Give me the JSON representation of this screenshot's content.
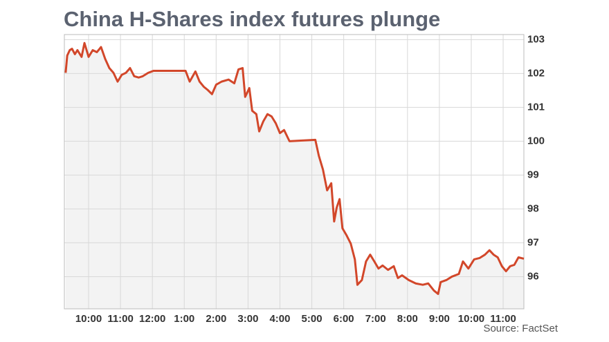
{
  "chart_data": {
    "type": "line",
    "title": "China H-Shares index futures plunge",
    "source": "Source: FactSet",
    "x": [
      9.28,
      9.33,
      9.41,
      9.48,
      9.57,
      9.65,
      9.78,
      9.87,
      10.0,
      10.13,
      10.26,
      10.39,
      10.52,
      10.65,
      10.78,
      10.91,
      11.04,
      11.17,
      11.3,
      11.43,
      11.57,
      11.7,
      11.87,
      12.04,
      13.04,
      13.17,
      13.35,
      13.48,
      13.61,
      13.74,
      13.87,
      14.0,
      14.17,
      14.39,
      14.57,
      14.7,
      14.83,
      14.91,
      15.04,
      15.13,
      15.26,
      15.35,
      15.48,
      15.61,
      15.74,
      15.87,
      16.0,
      16.13,
      16.3,
      17.11,
      17.22,
      17.35,
      17.48,
      17.61,
      17.7,
      17.78,
      17.87,
      17.96,
      18.09,
      18.22,
      18.35,
      18.43,
      18.57,
      18.7,
      18.83,
      18.96,
      19.09,
      19.22,
      19.39,
      19.57,
      19.7,
      19.83,
      20.04,
      20.26,
      20.48,
      20.65,
      20.83,
      20.96,
      21.04,
      21.22,
      21.39,
      21.61,
      21.74,
      21.91,
      22.09,
      22.26,
      22.43,
      22.57,
      22.7,
      22.83,
      22.96,
      23.09,
      23.22,
      23.35,
      23.48,
      23.65
    ],
    "series": [
      {
        "name": "H-Shares index futures",
        "color": "#d2472a",
        "values": [
          102.02,
          102.53,
          102.69,
          102.73,
          102.57,
          102.69,
          102.49,
          102.9,
          102.49,
          102.69,
          102.63,
          102.78,
          102.43,
          102.16,
          102.02,
          101.76,
          101.96,
          102.02,
          102.16,
          101.92,
          101.88,
          101.92,
          102.02,
          102.08,
          102.08,
          101.76,
          102.06,
          101.76,
          101.61,
          101.51,
          101.39,
          101.67,
          101.76,
          101.82,
          101.71,
          102.12,
          102.16,
          101.31,
          101.57,
          100.9,
          100.8,
          100.29,
          100.59,
          100.8,
          100.73,
          100.53,
          100.24,
          100.33,
          100.0,
          100.04,
          99.57,
          99.16,
          98.55,
          98.76,
          97.63,
          98.04,
          98.29,
          97.43,
          97.22,
          96.98,
          96.51,
          95.76,
          95.9,
          96.45,
          96.65,
          96.45,
          96.24,
          96.33,
          96.2,
          96.31,
          95.96,
          96.04,
          95.9,
          95.8,
          95.76,
          95.8,
          95.59,
          95.49,
          95.84,
          95.9,
          96.0,
          96.08,
          96.45,
          96.24,
          96.51,
          96.55,
          96.65,
          96.78,
          96.65,
          96.57,
          96.31,
          96.16,
          96.31,
          96.35,
          96.57,
          96.53
        ]
      }
    ],
    "xlim": [
      9.24,
      23.65
    ],
    "xticks": [
      {
        "value": 10,
        "label": "10:00"
      },
      {
        "value": 11,
        "label": "11:00"
      },
      {
        "value": 12,
        "label": "12:00"
      },
      {
        "value": 13,
        "label": "1:00"
      },
      {
        "value": 14,
        "label": "2:00"
      },
      {
        "value": 15,
        "label": "3:00"
      },
      {
        "value": 16,
        "label": "4:00"
      },
      {
        "value": 17,
        "label": "5:00"
      },
      {
        "value": 18,
        "label": "6:00"
      },
      {
        "value": 19,
        "label": "7:00"
      },
      {
        "value": 20,
        "label": "8:00"
      },
      {
        "value": 21,
        "label": "9:00"
      },
      {
        "value": 22,
        "label": "10:00"
      },
      {
        "value": 23,
        "label": "11:00"
      }
    ],
    "ylim": [
      95.05,
      103.15
    ],
    "yticks": [
      96,
      97,
      98,
      99,
      100,
      101,
      102,
      103
    ],
    "grid": true
  }
}
